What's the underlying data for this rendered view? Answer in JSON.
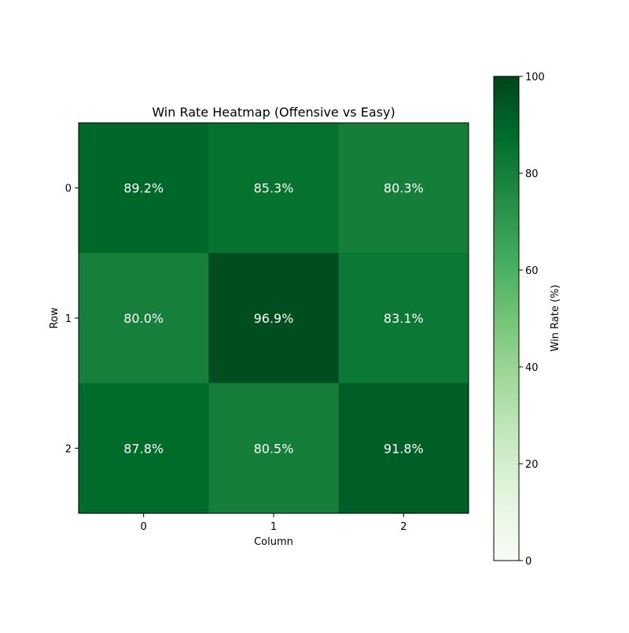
{
  "chart_data": {
    "type": "heatmap",
    "title": "Win Rate Heatmap (Offensive vs Easy)",
    "xlabel": "Column",
    "ylabel": "Row",
    "x_ticks": [
      "0",
      "1",
      "2"
    ],
    "y_ticks": [
      "0",
      "1",
      "2"
    ],
    "values": [
      [
        89.2,
        85.3,
        80.3
      ],
      [
        80.0,
        96.9,
        83.1
      ],
      [
        87.8,
        80.5,
        91.8
      ]
    ],
    "cell_labels": [
      [
        "89.2%",
        "85.3%",
        "80.3%"
      ],
      [
        "80.0%",
        "96.9%",
        "83.1%"
      ],
      [
        "87.8%",
        "80.5%",
        "91.8%"
      ]
    ],
    "colorbar": {
      "label": "Win Rate (%)",
      "min": 0,
      "max": 100,
      "ticks": [
        0,
        20,
        40,
        60,
        80,
        100
      ],
      "colormap": "Greens"
    },
    "grid": false
  }
}
